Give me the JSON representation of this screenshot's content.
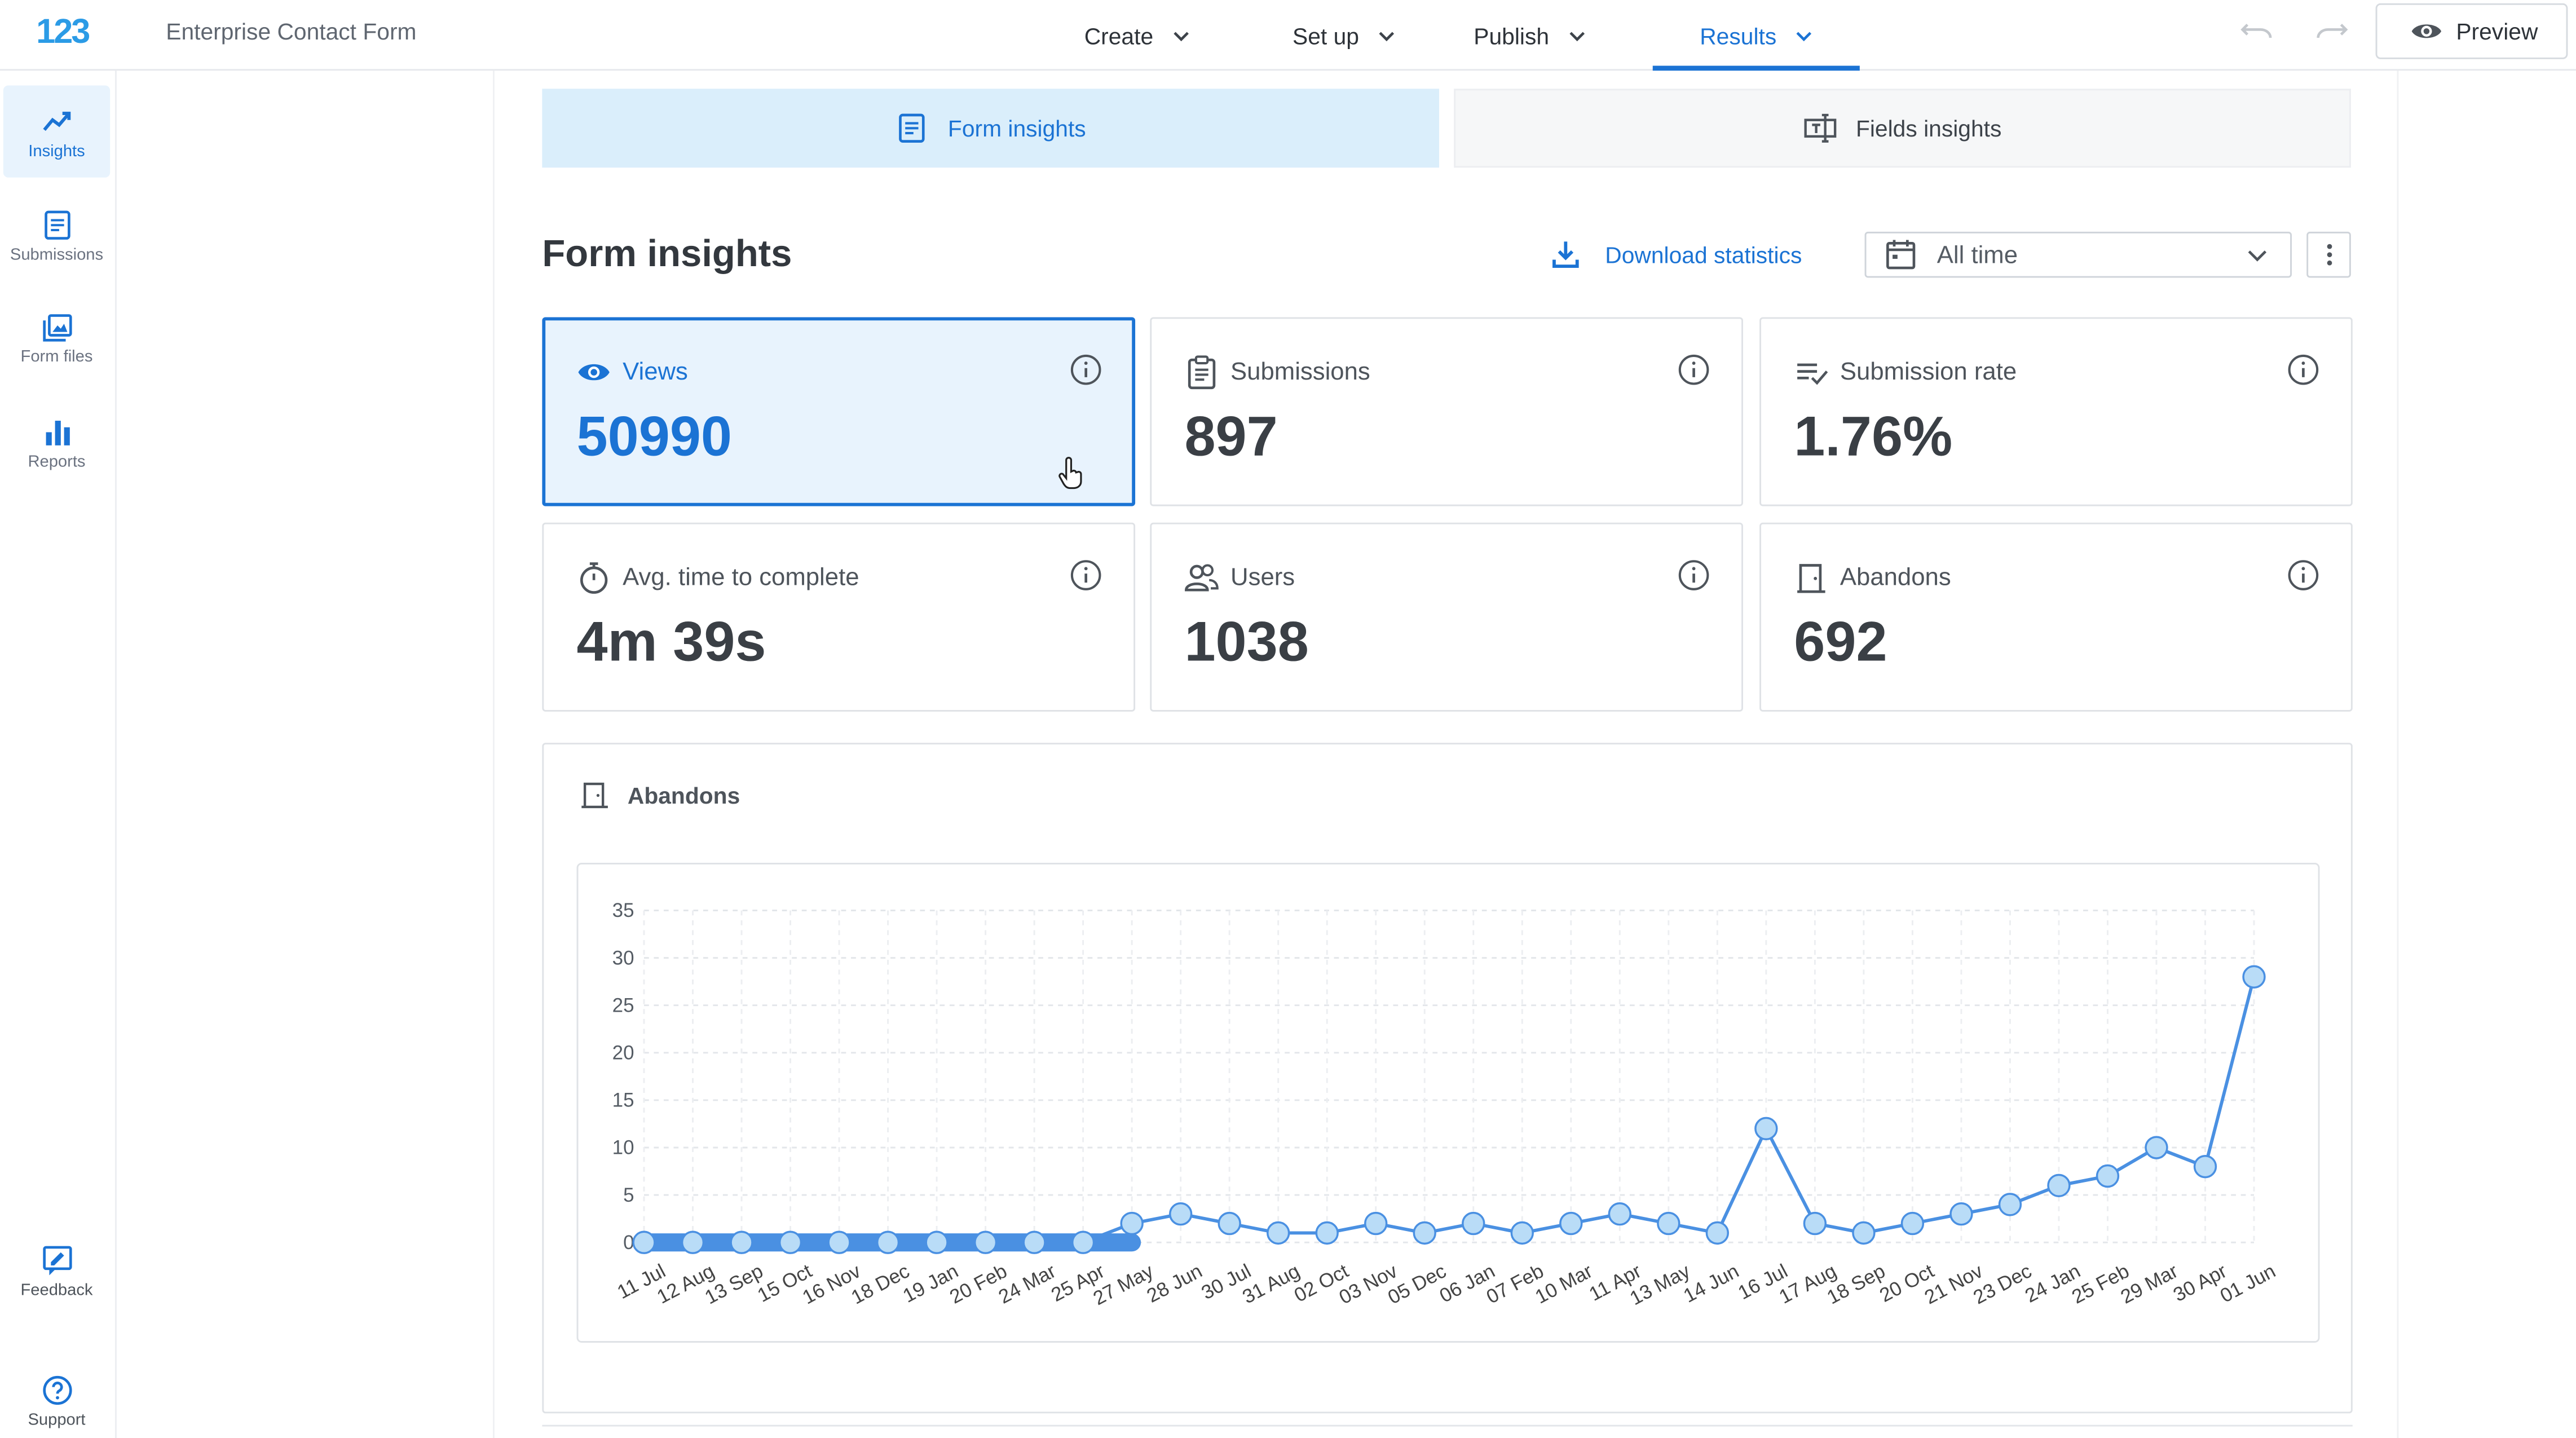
{
  "app": {
    "logo_text": "123",
    "form_title": "Enterprise Contact Form"
  },
  "nav": [
    {
      "label": "Create",
      "active": false
    },
    {
      "label": "Set up",
      "active": false
    },
    {
      "label": "Publish",
      "active": false
    },
    {
      "label": "Results",
      "active": true
    }
  ],
  "toolbar": {
    "preview_label": "Preview"
  },
  "sidebar": {
    "items": [
      {
        "label": "Insights",
        "icon": "insights-icon",
        "active": true
      },
      {
        "label": "Submissions",
        "icon": "submissions-icon",
        "active": false
      },
      {
        "label": "Form files",
        "icon": "form-files-icon",
        "active": false
      },
      {
        "label": "Reports",
        "icon": "reports-icon",
        "active": false
      }
    ],
    "bottom_items": [
      {
        "label": "Feedback",
        "icon": "feedback-icon"
      },
      {
        "label": "Support",
        "icon": "support-icon"
      }
    ]
  },
  "tabs": [
    {
      "label": "Form insights",
      "active": true
    },
    {
      "label": "Fields insights",
      "active": false
    }
  ],
  "page": {
    "title": "Form insights",
    "download_label": "Download statistics",
    "date_range": "All time"
  },
  "cards": [
    {
      "label": "Views",
      "value": "50990",
      "icon": "eye-icon",
      "selected": true
    },
    {
      "label": "Submissions",
      "value": "897",
      "icon": "clipboard-icon",
      "selected": false
    },
    {
      "label": "Submission rate",
      "value": "1.76%",
      "icon": "list-check-icon",
      "selected": false
    },
    {
      "label": "Avg. time to complete",
      "value": "4m 39s",
      "icon": "stopwatch-icon",
      "selected": false
    },
    {
      "label": "Users",
      "value": "1038",
      "icon": "users-icon",
      "selected": false
    },
    {
      "label": "Abandons",
      "value": "692",
      "icon": "door-icon",
      "selected": false
    }
  ],
  "colors": {
    "accent": "#1b73d4",
    "accent_light": "#e8f3fd",
    "series": "#4a90e2"
  },
  "chart_data": {
    "type": "line",
    "title": "Abandons",
    "xlabel": "",
    "ylabel": "",
    "ylim": [
      0,
      35
    ],
    "yticks": [
      0,
      5,
      10,
      15,
      20,
      25,
      30,
      35
    ],
    "grid": true,
    "categories": [
      "11 Jul",
      "12 Aug",
      "13 Sep",
      "15 Oct",
      "16 Nov",
      "18 Dec",
      "19 Jan",
      "20 Feb",
      "24 Mar",
      "25 Apr",
      "27 May",
      "28 Jun",
      "30 Jul",
      "31 Aug",
      "02 Oct",
      "03 Nov",
      "05 Dec",
      "06 Jan",
      "07 Feb",
      "10 Mar",
      "11 Apr",
      "13 May",
      "14 Jun",
      "16 Jul",
      "17 Aug",
      "18 Sep",
      "20 Oct",
      "21 Nov",
      "23 Dec",
      "24 Jan",
      "25 Feb",
      "29 Mar",
      "30 Apr",
      "01 Jun"
    ],
    "series": [
      {
        "values": [
          0,
          0,
          0,
          0,
          0,
          0,
          0,
          0,
          0,
          0,
          2,
          3,
          2,
          1,
          1,
          2,
          1,
          2,
          1,
          2,
          3,
          2,
          1,
          12,
          2,
          1,
          2,
          3,
          4,
          6,
          7,
          10,
          8,
          28
        ]
      }
    ]
  }
}
